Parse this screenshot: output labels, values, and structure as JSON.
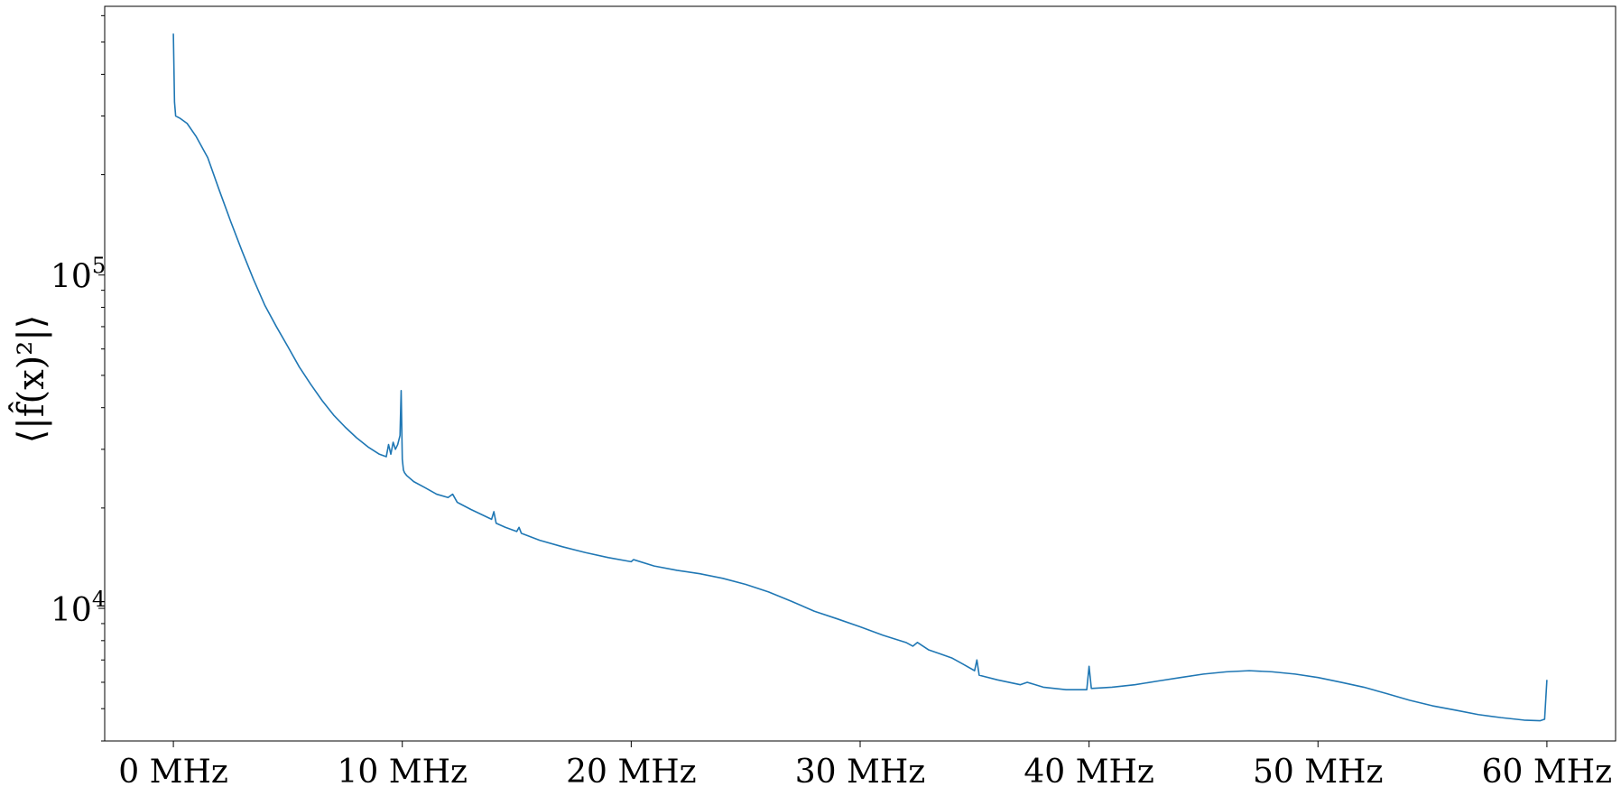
{
  "chart_data": {
    "type": "line",
    "title": "",
    "xlabel": "",
    "ylabel": "⟨|f̂(x)²|⟩",
    "yscale": "log",
    "xlim": [
      -3,
      63
    ],
    "ylim": [
      4000,
      640000
    ],
    "grid": false,
    "legend": "none",
    "color": "#1f77b4",
    "x_ticks": [
      {
        "value": 0,
        "label": "0 MHz"
      },
      {
        "value": 10,
        "label": "10 MHz"
      },
      {
        "value": 20,
        "label": "20 MHz"
      },
      {
        "value": 30,
        "label": "30 MHz"
      },
      {
        "value": 40,
        "label": "40 MHz"
      },
      {
        "value": 50,
        "label": "50 MHz"
      },
      {
        "value": 60,
        "label": "60 MHz"
      }
    ],
    "y_ticks": [
      {
        "value": 10000,
        "base": "10",
        "exp": "4"
      },
      {
        "value": 100000,
        "base": "10",
        "exp": "5"
      }
    ],
    "series": [
      {
        "name": "",
        "x": [
          0.0,
          0.05,
          0.1,
          0.3,
          0.6,
          1.0,
          1.5,
          2.0,
          2.5,
          3.0,
          3.5,
          4.0,
          4.5,
          5.0,
          5.5,
          6.0,
          6.5,
          7.0,
          7.5,
          8.0,
          8.5,
          9.0,
          9.3,
          9.4,
          9.5,
          9.6,
          9.7,
          9.8,
          9.9,
          9.95,
          10.0,
          10.05,
          10.1,
          10.2,
          10.5,
          11.0,
          11.5,
          12.0,
          12.2,
          12.4,
          13.0,
          13.9,
          14.0,
          14.1,
          14.5,
          15.0,
          15.1,
          15.2,
          16.0,
          17.0,
          18.0,
          19.0,
          20.0,
          20.1,
          21.0,
          22.0,
          23.0,
          24.0,
          25.0,
          26.0,
          27.0,
          28.0,
          29.0,
          30.0,
          31.0,
          31.5,
          32.0,
          32.3,
          32.5,
          33.0,
          33.5,
          34.0,
          34.5,
          35.0,
          35.1,
          35.2,
          36.0,
          37.0,
          37.3,
          38.0,
          39.0,
          39.9,
          40.0,
          40.1,
          41.0,
          42.0,
          43.0,
          44.0,
          45.0,
          46.0,
          47.0,
          48.0,
          49.0,
          50.0,
          51.0,
          52.0,
          53.0,
          54.0,
          55.0,
          56.0,
          57.0,
          58.0,
          59.0,
          59.7,
          59.9,
          60.0
        ],
        "y": [
          530000,
          330000,
          300000,
          295000,
          285000,
          260000,
          225000,
          180000,
          145000,
          118000,
          97000,
          81000,
          70000,
          61000,
          53000,
          47000,
          42000,
          38000,
          35000,
          32500,
          30500,
          29000,
          28500,
          31000,
          29000,
          31500,
          30000,
          31000,
          33000,
          45000,
          28000,
          26000,
          25500,
          25000,
          24000,
          23000,
          22000,
          21500,
          22000,
          20800,
          19800,
          18500,
          19500,
          18000,
          17500,
          17000,
          17500,
          16800,
          16000,
          15300,
          14700,
          14200,
          13800,
          14000,
          13400,
          13000,
          12700,
          12300,
          11800,
          11200,
          10500,
          9800,
          9300,
          8800,
          8300,
          8100,
          7900,
          7700,
          7900,
          7500,
          7300,
          7100,
          6800,
          6500,
          7000,
          6300,
          6100,
          5900,
          6000,
          5800,
          5700,
          5700,
          6700,
          5750,
          5800,
          5900,
          6050,
          6200,
          6350,
          6450,
          6500,
          6450,
          6350,
          6200,
          6000,
          5800,
          5550,
          5300,
          5100,
          4950,
          4800,
          4700,
          4620,
          4600,
          4650,
          6100
        ]
      }
    ]
  }
}
